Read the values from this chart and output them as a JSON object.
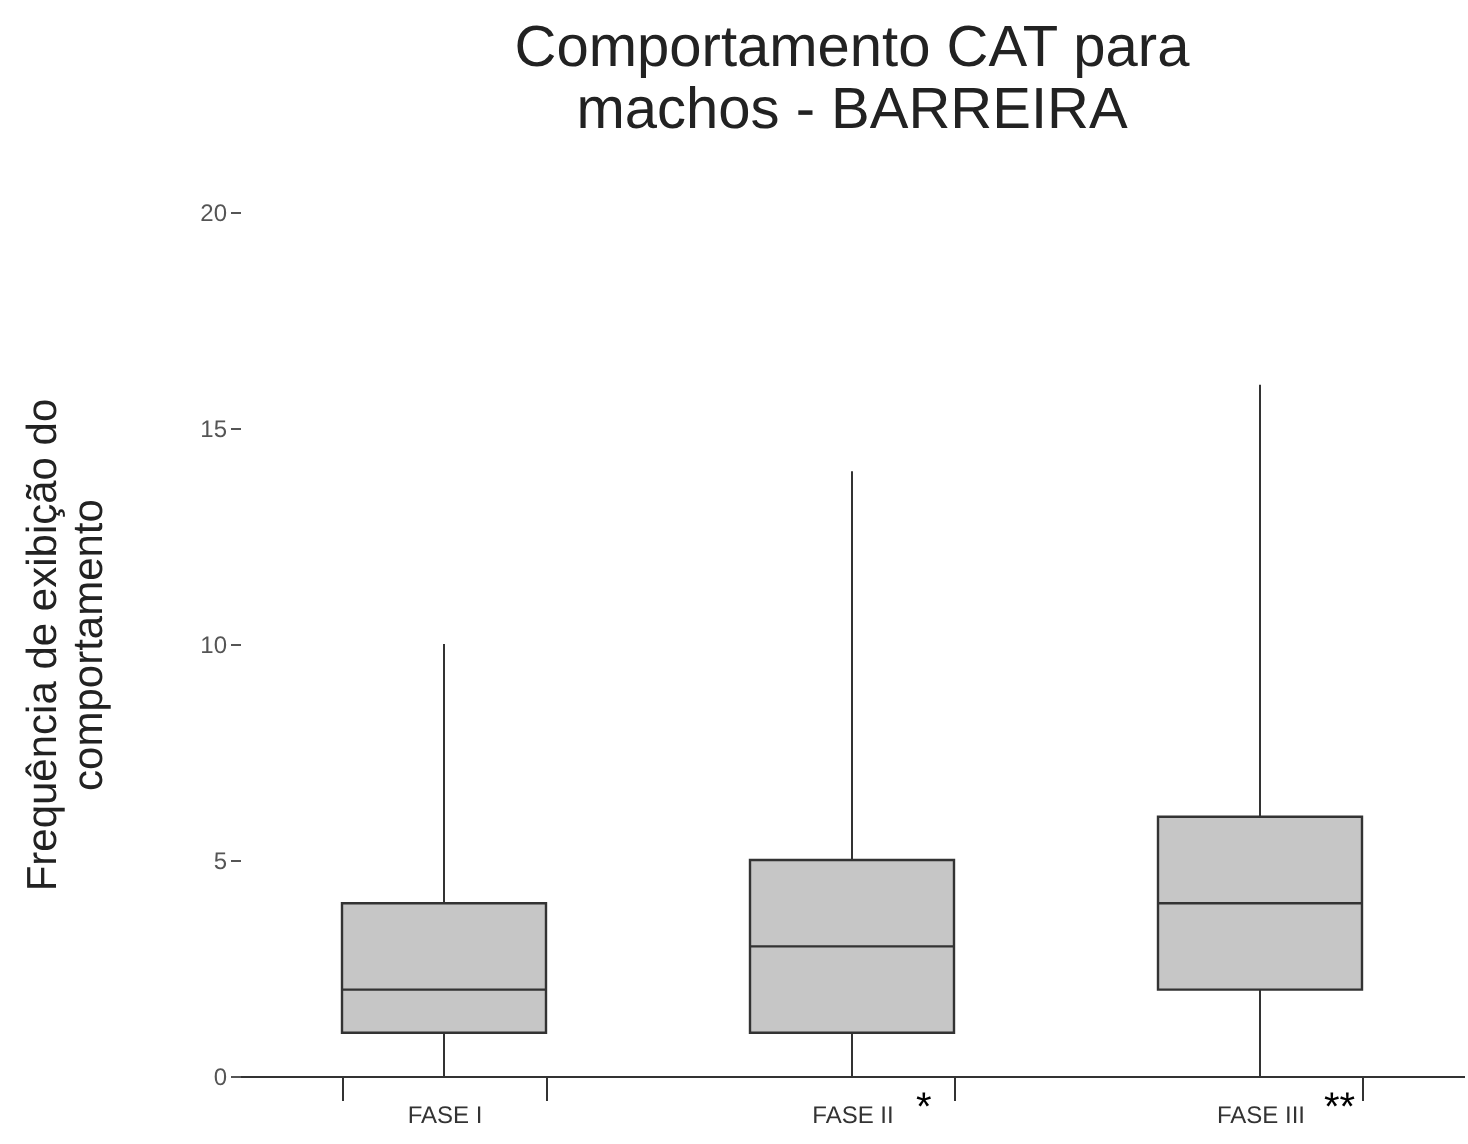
{
  "chart_data": {
    "type": "box",
    "title": "Comportamento CAT para\nmachos - BARREIRA",
    "ylabel": "Frequência de exibição do\ncomportamento",
    "categories": [
      "FASE I",
      "FASE II",
      "FASE III"
    ],
    "boxes": [
      {
        "low": 0,
        "q1": 1,
        "median": 2,
        "q3": 4,
        "high": 10
      },
      {
        "low": 0,
        "q1": 1,
        "median": 3,
        "q3": 5,
        "high": 14
      },
      {
        "low": 0,
        "q1": 2,
        "median": 4,
        "q3": 6,
        "high": 16
      }
    ],
    "ylim": [
      0,
      20
    ],
    "yticks": [
      0,
      5,
      10,
      15,
      20
    ],
    "annotations": [
      "*",
      "**"
    ]
  }
}
